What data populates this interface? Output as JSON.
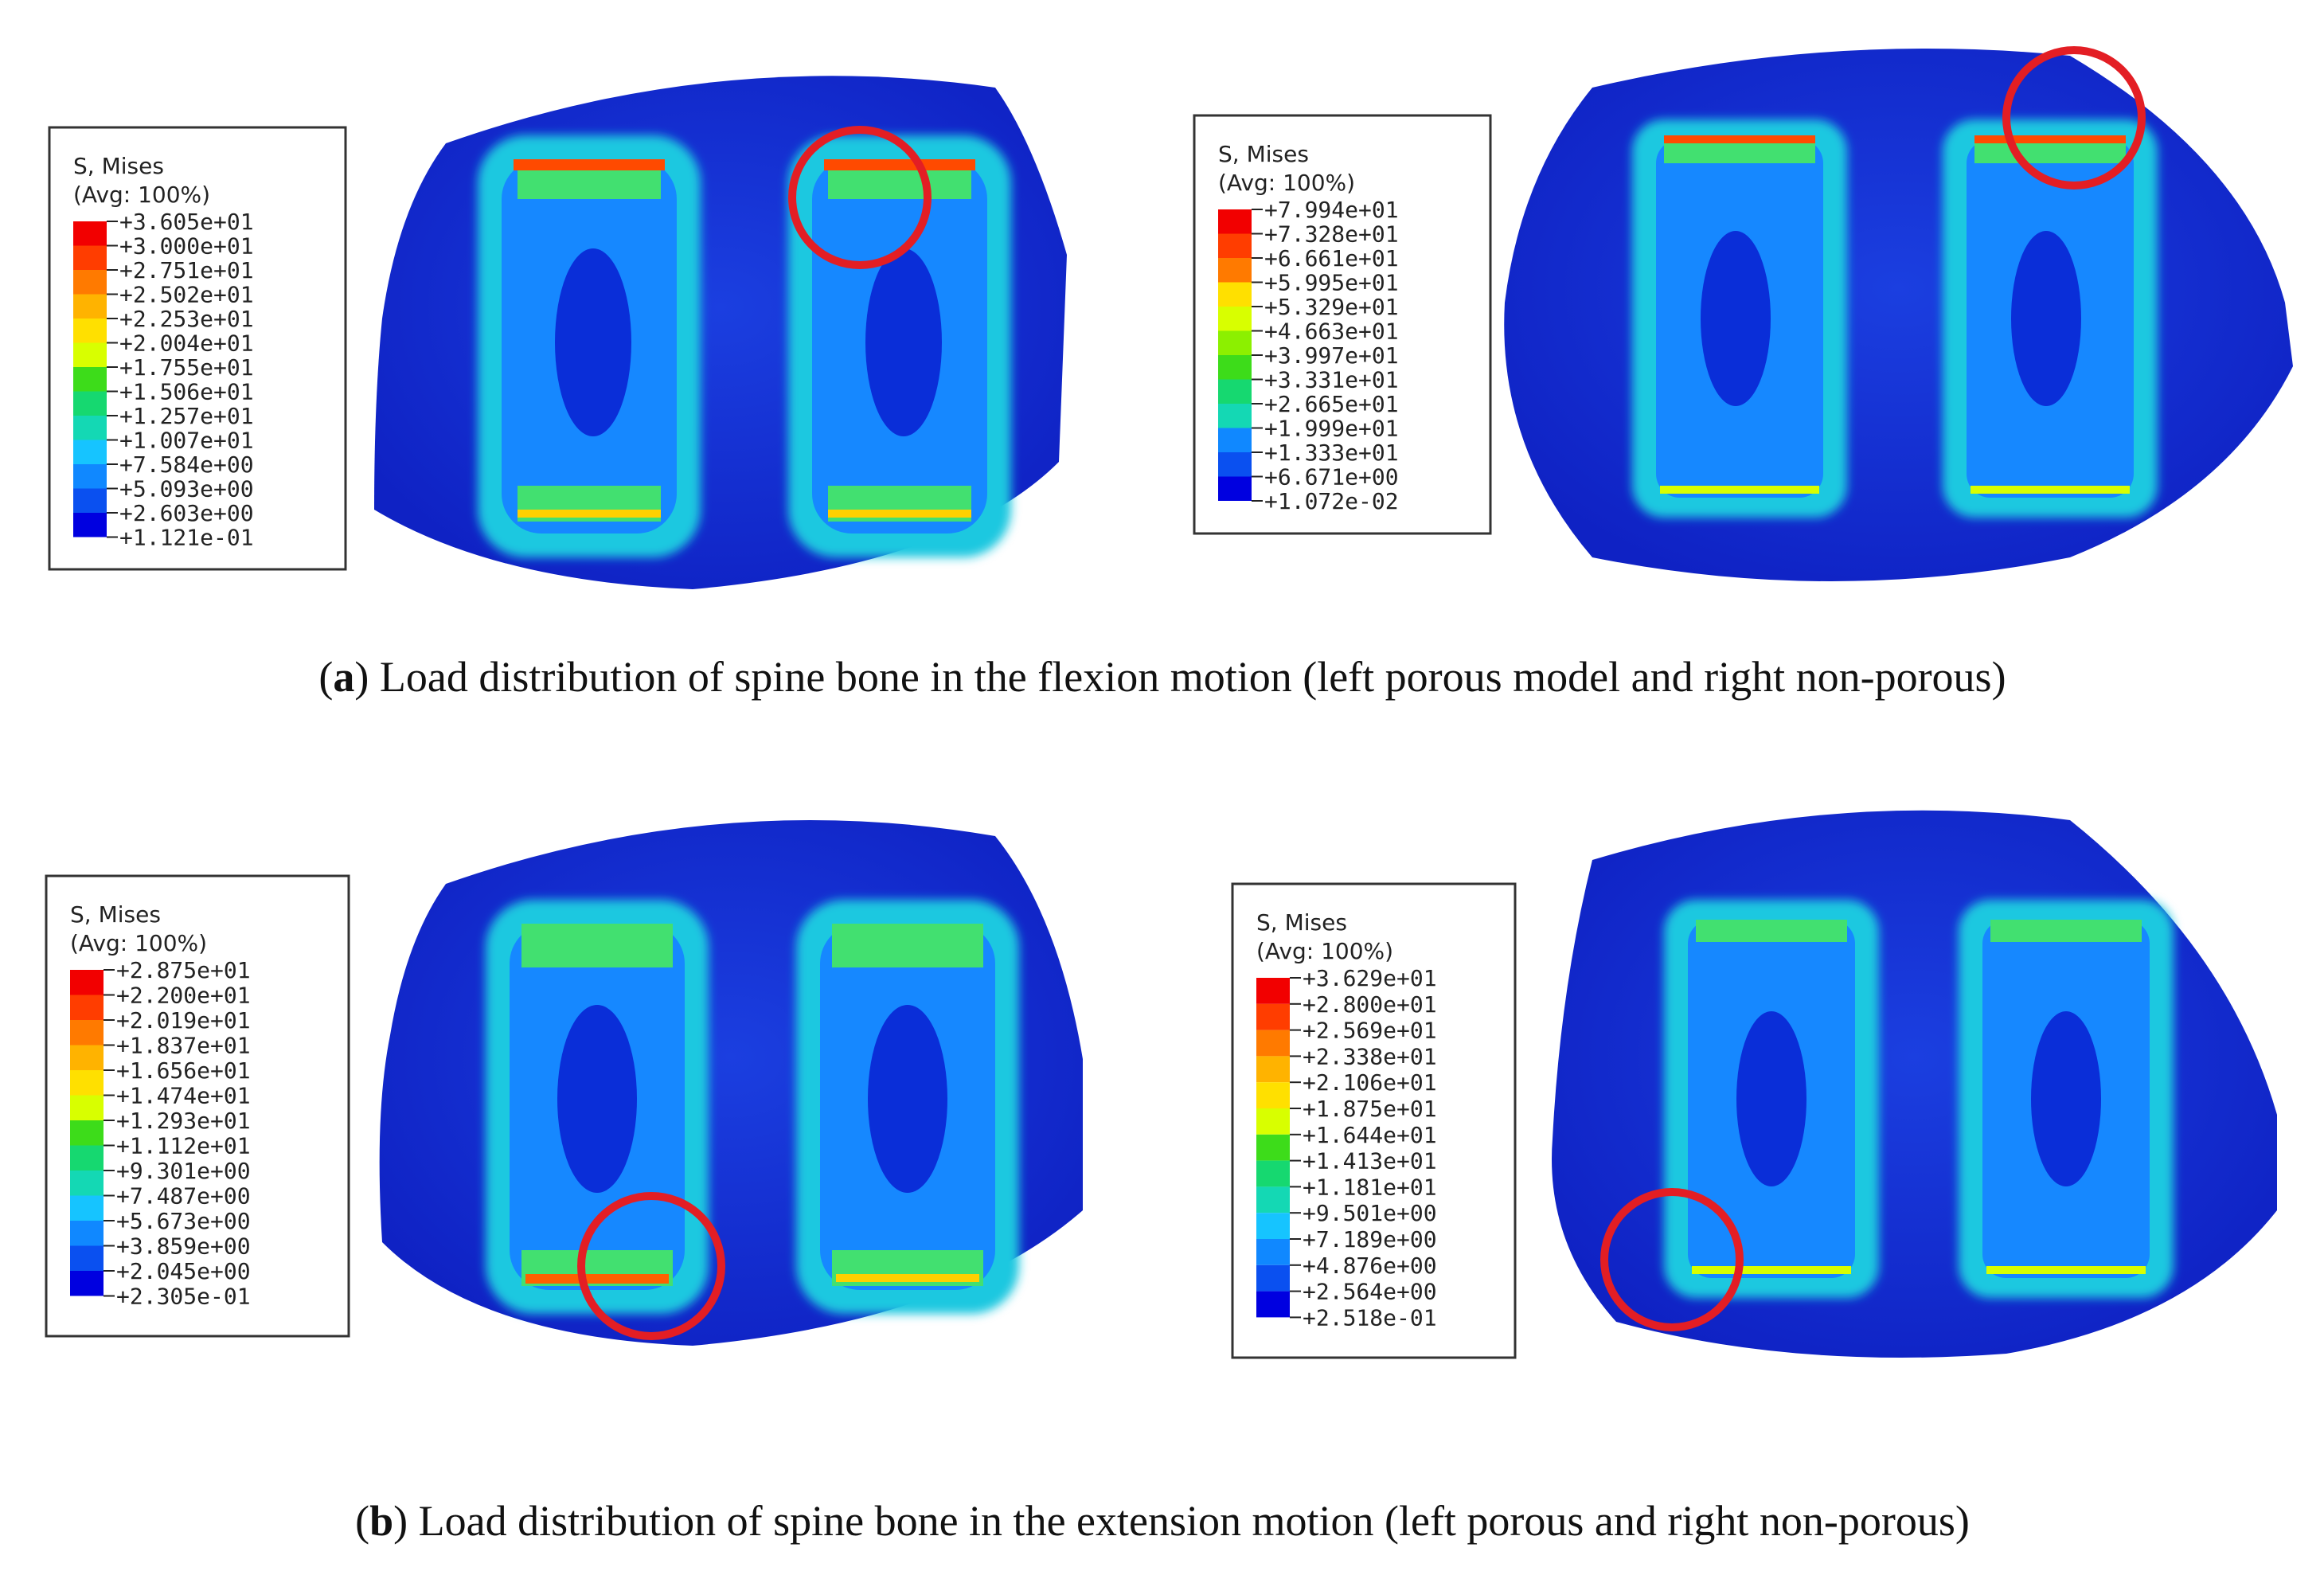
{
  "panels": [
    {
      "caption_letter": "a",
      "caption_text": " Load distribution of spine bone in the flexion motion (left porous model and right non-porous)",
      "plots": [
        {
          "legend_title": "S, Mises",
          "legend_subtitle": "(Avg: 100%)",
          "values": [
            "+3.605e+01",
            "+3.000e+01",
            "+2.751e+01",
            "+2.502e+01",
            "+2.253e+01",
            "+2.004e+01",
            "+1.755e+01",
            "+1.506e+01",
            "+1.257e+01",
            "+1.007e+01",
            "+7.584e+00",
            "+5.093e+00",
            "+2.603e+00",
            "+1.121e-01"
          ],
          "highlight_circle": "top-right implant"
        },
        {
          "legend_title": "S, Mises",
          "legend_subtitle": "(Avg: 100%)",
          "values": [
            "+7.994e+01",
            "+7.328e+01",
            "+6.661e+01",
            "+5.995e+01",
            "+5.329e+01",
            "+4.663e+01",
            "+3.997e+01",
            "+3.331e+01",
            "+2.665e+01",
            "+1.999e+01",
            "+1.333e+01",
            "+6.671e+00",
            "+1.072e-02"
          ],
          "highlight_circle": "top-right implant"
        }
      ]
    },
    {
      "caption_letter": "b",
      "caption_text": " Load distribution of spine bone in the extension motion (left porous and right non-porous)",
      "plots": [
        {
          "legend_title": "S, Mises",
          "legend_subtitle": "(Avg: 100%)",
          "values": [
            "+2.875e+01",
            "+2.200e+01",
            "+2.019e+01",
            "+1.837e+01",
            "+1.656e+01",
            "+1.474e+01",
            "+1.293e+01",
            "+1.112e+01",
            "+9.301e+00",
            "+7.487e+00",
            "+5.673e+00",
            "+3.859e+00",
            "+2.045e+00",
            "+2.305e-01"
          ],
          "highlight_circle": "bottom of left implant"
        },
        {
          "legend_title": "S, Mises",
          "legend_subtitle": "(Avg: 100%)",
          "values": [
            "+3.629e+01",
            "+2.800e+01",
            "+2.569e+01",
            "+2.338e+01",
            "+2.106e+01",
            "+1.875e+01",
            "+1.644e+01",
            "+1.413e+01",
            "+1.181e+01",
            "+9.501e+00",
            "+7.189e+00",
            "+4.876e+00",
            "+2.564e+00",
            "+2.518e-01"
          ],
          "highlight_circle": "bottom-left corner of left implant"
        }
      ]
    }
  ],
  "colors": {
    "scale": [
      "#f20000",
      "#ff3d00",
      "#ff7a00",
      "#ffb300",
      "#ffe000",
      "#d8ff00",
      "#8cf000",
      "#3ddc1a",
      "#16d870",
      "#14d8b4",
      "#16c4ff",
      "#1088ff",
      "#0a50f0",
      "#0000e0"
    ],
    "bone_blue": "#1733d6",
    "highlight": "#e31e24"
  }
}
